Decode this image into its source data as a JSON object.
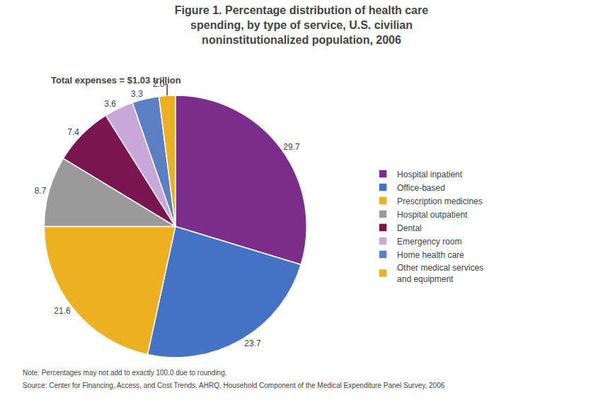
{
  "chart_data": {
    "type": "pie",
    "title": "Figure 1. Percentage distribution of health care\nspending, by type of service, U.S. civilian\nnoninstitutionalized population, 2006",
    "subtitle": "Total expenses = $1.03 trillion",
    "categories": [
      "Hospital inpatient",
      "Office-based",
      "Prescription medicines",
      "Hospital outpatient",
      "Dental",
      "Emergency room",
      "Home health care",
      "Other medical services\nand equipment"
    ],
    "values": [
      29.7,
      23.7,
      21.6,
      8.7,
      7.4,
      3.6,
      3.3,
      2.0
    ],
    "value_labels": [
      "29.7",
      "23.7",
      "21.6",
      "8.7",
      "7.4",
      "3.6",
      "3.3",
      "2.0"
    ],
    "data_labels": true,
    "colors": [
      "#7B2D8B",
      "#4472C4",
      "#EDB120",
      "#9A9A9A",
      "#7B1550",
      "#C8A8D8",
      "#5B7EC4",
      "#EDB120"
    ],
    "legend": "right",
    "annotations": [
      "Note: Percentages may not add to exactly 100.0 due to rounding.",
      "Source: Center for Financing, Access, and Cost Trends, AHRQ, Household Component of the Medical Expenditure Panel Survey, 2006"
    ]
  }
}
